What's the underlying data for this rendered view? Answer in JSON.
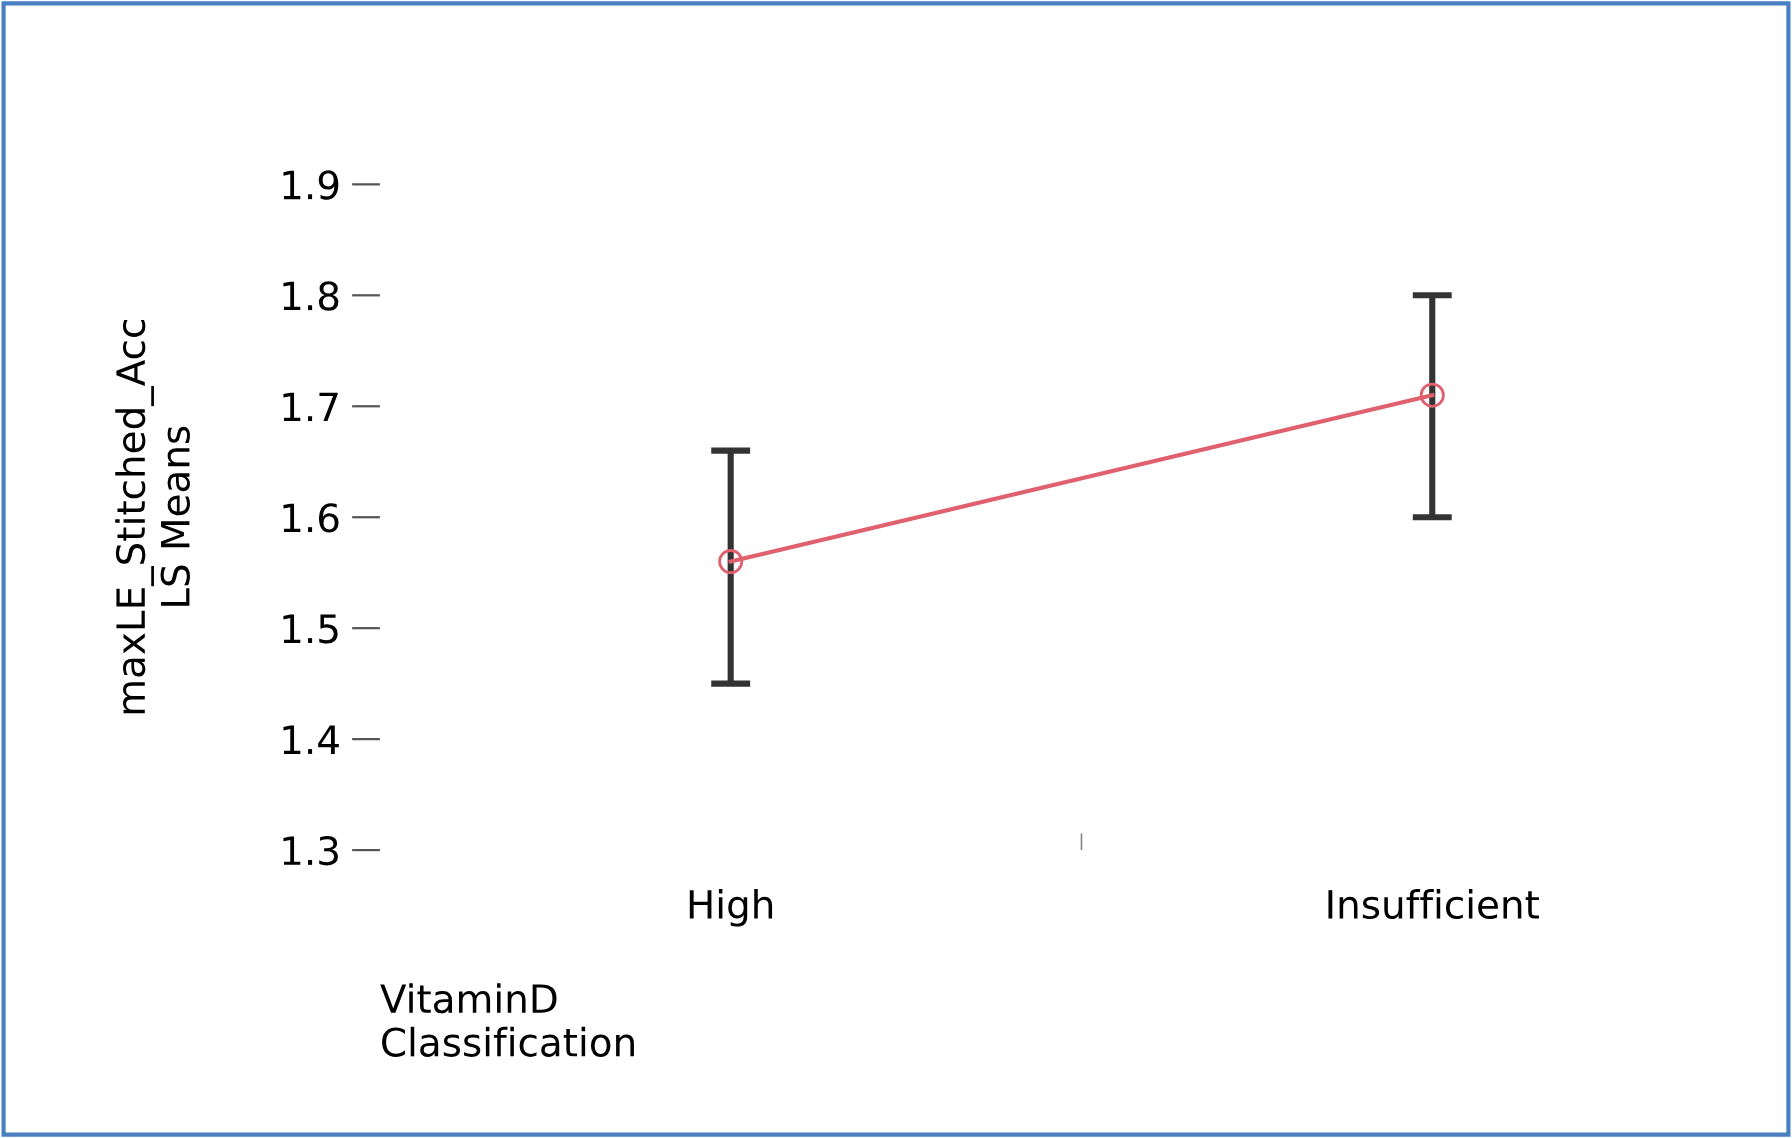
{
  "chart_data": {
    "type": "line",
    "xlabel": "VitaminD\nClassification",
    "ylabel": "maxLE_Stitched_Acc\nLS Means",
    "categories": [
      "High",
      "Insufficient"
    ],
    "series": [
      {
        "color": "#e0606e",
        "values": [
          1.56,
          1.71
        ],
        "errors": [
          [
            1.45,
            1.66
          ],
          [
            1.6,
            1.8
          ]
        ]
      }
    ],
    "ylim": [
      1.3,
      1.9
    ],
    "yticks": [
      1.3,
      1.4,
      1.5,
      1.6,
      1.7,
      1.8,
      1.9
    ],
    "marker": "circle",
    "line_style": "solid",
    "grid": false,
    "legend": false
  }
}
